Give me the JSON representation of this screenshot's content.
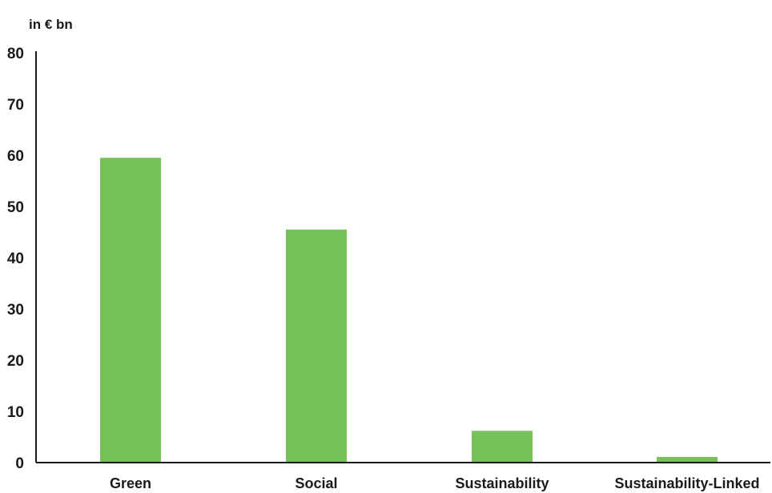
{
  "chart_data": {
    "type": "bar",
    "title": "",
    "ylabel": "in € bn",
    "xlabel": "",
    "categories": [
      "Green",
      "Social",
      "Sustainability",
      "Sustainability-Linked"
    ],
    "values": [
      59.5,
      45.5,
      6.2,
      1.1
    ],
    "ylim": [
      0,
      80
    ],
    "yticks": [
      "0",
      "10",
      "20",
      "30",
      "40",
      "50",
      "60",
      "70",
      "80"
    ],
    "grid": false,
    "legend": "none",
    "bar_color": "#77c15a",
    "axis_color": "#1a1a1a"
  }
}
